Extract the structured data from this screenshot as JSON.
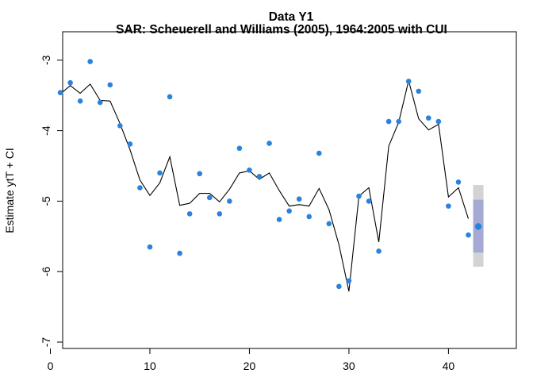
{
  "chart_data": {
    "type": "scatter",
    "title": "Data Y1",
    "subtitle": "SAR: Scheuerell and Williams (2005), 1964:2005 with CUI",
    "xlabel": "",
    "ylabel": "Estimate ytT + CI",
    "xlim": [
      0,
      45
    ],
    "ylim": [
      -7.05,
      -2.6
    ],
    "x_ticks": [
      0,
      10,
      20,
      30,
      40
    ],
    "y_ticks": [
      -7,
      -6,
      -5,
      -4,
      -3
    ],
    "grid": false,
    "legend": "none",
    "series": [
      {
        "type": "scatter",
        "x": [
          1,
          2,
          3,
          4,
          5,
          6,
          7,
          8,
          9,
          10,
          11,
          12,
          13,
          14,
          15,
          16,
          17,
          18,
          19,
          20,
          21,
          22,
          23,
          24,
          25,
          26,
          27,
          28,
          29,
          30,
          31,
          32,
          33,
          34,
          35,
          36,
          37,
          38,
          39,
          40,
          41,
          42
        ],
        "y": [
          -3.46,
          -3.32,
          -3.58,
          -3.02,
          -3.6,
          -3.35,
          -3.93,
          -4.19,
          -4.81,
          -5.65,
          -4.6,
          -3.52,
          -5.74,
          -5.18,
          -4.61,
          -4.95,
          -5.18,
          -5.0,
          -4.25,
          -4.56,
          -4.65,
          -4.18,
          -5.26,
          -5.14,
          -4.97,
          -5.22,
          -4.32,
          -5.32,
          -6.21,
          -6.13,
          -4.93,
          -5.0,
          -5.71,
          -3.87,
          -3.87,
          -3.3,
          -3.44,
          -3.82,
          -3.87,
          -5.07,
          -4.73,
          -5.48
        ],
        "color": "#2b82dc"
      },
      {
        "type": "line",
        "x": [
          1,
          2,
          3,
          4,
          5,
          6,
          7,
          8,
          9,
          10,
          11,
          12,
          13,
          14,
          15,
          16,
          17,
          18,
          19,
          20,
          21,
          22,
          23,
          24,
          25,
          26,
          27,
          28,
          29,
          30,
          31,
          32,
          33,
          34,
          35,
          36,
          37,
          38,
          39,
          40,
          41,
          42
        ],
        "y": [
          -3.48,
          -3.36,
          -3.47,
          -3.34,
          -3.57,
          -3.58,
          -3.9,
          -4.27,
          -4.7,
          -4.92,
          -4.74,
          -4.37,
          -5.06,
          -5.03,
          -4.89,
          -4.89,
          -5.01,
          -4.83,
          -4.6,
          -4.57,
          -4.69,
          -4.6,
          -4.85,
          -5.07,
          -5.05,
          -5.07,
          -4.82,
          -5.12,
          -5.62,
          -6.28,
          -4.93,
          -4.81,
          -5.58,
          -4.22,
          -3.88,
          -3.29,
          -3.83,
          -3.99,
          -3.91,
          -4.94,
          -4.81,
          -5.25
        ],
        "color": "#000000"
      }
    ],
    "forecast": {
      "x": 43,
      "estimate": -5.36,
      "inner_ci": [
        -5.73,
        -4.98
      ],
      "outer_ci": [
        -5.93,
        -4.77
      ],
      "inner_color": "#a4aad4",
      "outer_color": "#d3d3d3",
      "point_color": "#2b82dc"
    }
  }
}
